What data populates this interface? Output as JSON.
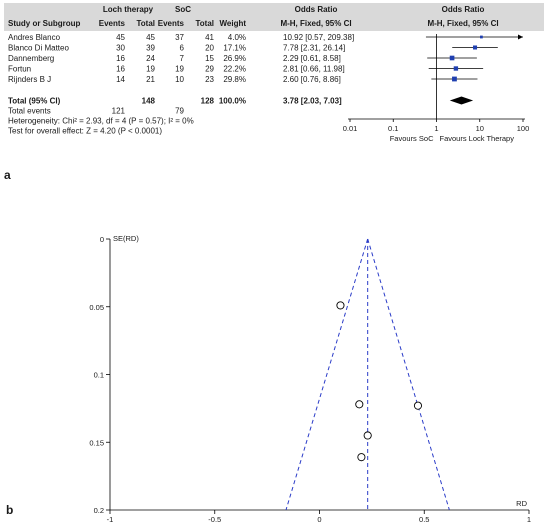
{
  "panels": {
    "a": "a",
    "b": "b"
  },
  "colors": {
    "header_bg": "#d9d9d9",
    "square": "#1f3fb0",
    "funnel": "#2b3cc8",
    "diamond": "#000000"
  },
  "chart_data": [
    {
      "type": "table",
      "subtype": "forest-plot",
      "headers": {
        "study": "Study or Subgroup",
        "group1": "Loch therapy",
        "group2": "SoC",
        "events": "Events",
        "total": "Total",
        "weight": "Weight",
        "or_title": "Odds Ratio",
        "or_method": "M-H, Fixed, 95% CI",
        "or_title_plot": "Odds Ratio",
        "or_method_plot": "M-H, Fixed, 95% CI"
      },
      "studies": [
        {
          "name": "Andres Blanco",
          "e1": "45",
          "t1": "45",
          "e2": "37",
          "t2": "41",
          "weight": "4.0%",
          "ci_text": "10.92 [0.57, 209.38]",
          "or": 10.92,
          "lo": 0.57,
          "hi": 209.38,
          "w": 4.0
        },
        {
          "name": "Blanco Di Matteo",
          "e1": "30",
          "t1": "39",
          "e2": "6",
          "t2": "20",
          "weight": "17.1%",
          "ci_text": "7.78 [2.31, 26.14]",
          "or": 7.78,
          "lo": 2.31,
          "hi": 26.14,
          "w": 17.1
        },
        {
          "name": "Dannemberg",
          "e1": "16",
          "t1": "24",
          "e2": "7",
          "t2": "15",
          "weight": "26.9%",
          "ci_text": "2.29 [0.61, 8.58]",
          "or": 2.29,
          "lo": 0.61,
          "hi": 8.58,
          "w": 26.9
        },
        {
          "name": "Fortun",
          "e1": "16",
          "t1": "19",
          "e2": "19",
          "t2": "29",
          "weight": "22.2%",
          "ci_text": "2.81 [0.66, 11.98]",
          "or": 2.81,
          "lo": 0.66,
          "hi": 11.98,
          "w": 22.2
        },
        {
          "name": "Rijnders B J",
          "e1": "14",
          "t1": "21",
          "e2": "10",
          "t2": "23",
          "weight": "29.8%",
          "ci_text": "2.60 [0.76, 8.86]",
          "or": 2.6,
          "lo": 0.76,
          "hi": 8.86,
          "w": 29.8
        }
      ],
      "total": {
        "label": "Total (95% CI)",
        "t1": "148",
        "t2": "128",
        "weight": "100.0%",
        "ci_text": "3.78 [2.03, 7.03]",
        "or": 3.78,
        "lo": 2.03,
        "hi": 7.03
      },
      "total_events": {
        "label": "Total events",
        "e1": "121",
        "e2": "79"
      },
      "heterogeneity": "Heterogeneity: Chi² = 2.93, df = 4 (P = 0.57); I² = 0%",
      "overall_effect": "Test for overall effect: Z = 4.20 (P < 0.0001)",
      "x_axis": {
        "scale": "log",
        "ticks": [
          0.01,
          0.1,
          1,
          10,
          100
        ],
        "tick_labels": [
          "0.01",
          "0.1",
          "1",
          "10",
          "100"
        ],
        "xlim": [
          0.01,
          100
        ]
      },
      "favours_left": "Favours SoC",
      "favours_right": "Favours Lock Therapy"
    },
    {
      "type": "scatter",
      "subtype": "funnel-plot",
      "ylabel": "SE(RD)",
      "xlabel": "RD",
      "xlim": [
        -1,
        1
      ],
      "ylim": [
        0,
        0.2
      ],
      "y_inverted": true,
      "x_ticks": [
        -1,
        -0.5,
        0,
        0.5,
        1
      ],
      "x_tick_labels": [
        "-1",
        "-0.5",
        "0",
        "0.5",
        "1"
      ],
      "y_ticks": [
        0,
        0.05,
        0.1,
        0.15,
        0.2
      ],
      "y_tick_labels": [
        "0",
        "0.05",
        "0.1",
        "0.15",
        "0.2"
      ],
      "points": [
        {
          "x": 0.1,
          "y": 0.049
        },
        {
          "x": 0.19,
          "y": 0.122
        },
        {
          "x": 0.47,
          "y": 0.123
        },
        {
          "x": 0.23,
          "y": 0.145
        },
        {
          "x": 0.2,
          "y": 0.161
        }
      ],
      "pooled_x": 0.23,
      "funnel": {
        "apex": [
          0.23,
          0
        ],
        "base_left": [
          -0.16,
          0.2
        ],
        "base_right": [
          0.62,
          0.2
        ]
      }
    }
  ]
}
